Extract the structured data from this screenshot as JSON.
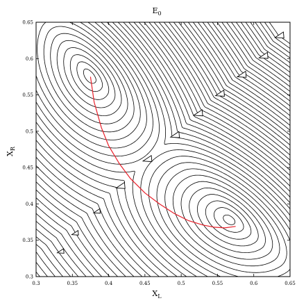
{
  "chart_data": {
    "type": "contour",
    "title": "E",
    "title_subscript": "0",
    "xlabel": "X",
    "xlabel_subscript": "L",
    "ylabel": "X",
    "ylabel_subscript": "R",
    "xlim": [
      0.3,
      0.65
    ],
    "ylim": [
      0.3,
      0.65
    ],
    "xticks": [
      "0.3",
      "0.35",
      "0.4",
      "0.45",
      "0.5",
      "0.55",
      "0.6",
      "0.65"
    ],
    "yticks": [
      "0.3",
      "0.35",
      "0.4",
      "0.45",
      "0.5",
      "0.55",
      "0.6",
      "0.65"
    ],
    "minima": [
      {
        "x": 0.375,
        "y": 0.578
      },
      {
        "x": 0.56,
        "y": 0.375
      }
    ],
    "path": {
      "color": "#e8202a",
      "x": [
        0.375,
        0.38,
        0.39,
        0.4,
        0.415,
        0.43,
        0.45,
        0.47,
        0.49,
        0.51,
        0.53,
        0.545,
        0.56,
        0.575
      ],
      "y": [
        0.575,
        0.54,
        0.505,
        0.48,
        0.455,
        0.435,
        0.415,
        0.4,
        0.387,
        0.377,
        0.371,
        0.368,
        0.367,
        0.369
      ]
    },
    "grid": false
  }
}
